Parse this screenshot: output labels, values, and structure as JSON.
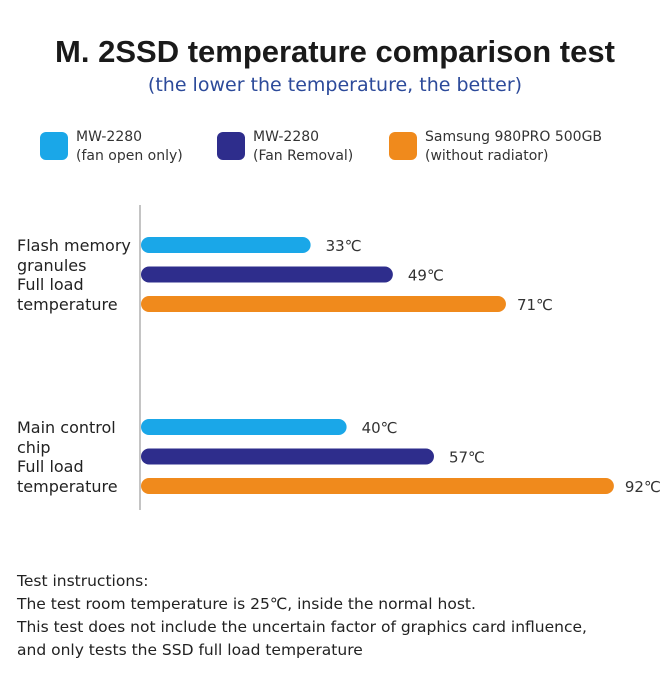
{
  "chart_data": {
    "type": "bar",
    "orientation": "horizontal",
    "title": "M. 2SSD temperature comparison test",
    "subtitle": "(the lower the temperature, the better)",
    "categories": [
      [
        "Flash memory",
        "granules",
        "Full load",
        "temperature"
      ],
      [
        "Main control",
        "chip",
        "Full load",
        "temperature"
      ]
    ],
    "series": [
      {
        "name": "MW-2280 (fan open only)",
        "name_lines": [
          "MW-2280",
          "(fan open only)"
        ],
        "color": "#1aa7e8",
        "values": [
          33,
          40
        ]
      },
      {
        "name": "MW-2280 (Fan Removal)",
        "name_lines": [
          "MW-2280",
          "(Fan Removal)"
        ],
        "color": "#2e2d8c",
        "values": [
          49,
          57
        ]
      },
      {
        "name": "Samsung 980PRO 500GB (without radiator)",
        "name_lines": [
          "Samsung 980PRO 500GB",
          "(without radiator)"
        ],
        "color": "#f08a1c",
        "values": [
          71,
          92
        ]
      }
    ],
    "unit": "℃",
    "legend_position": "top",
    "grid": false
  },
  "notes": [
    "Test instructions:",
    "The test room temperature is 25℃, inside the normal host.",
    "This test does not include the uncertain factor of graphics card influence,",
    "and only tests the SSD full load temperature"
  ]
}
